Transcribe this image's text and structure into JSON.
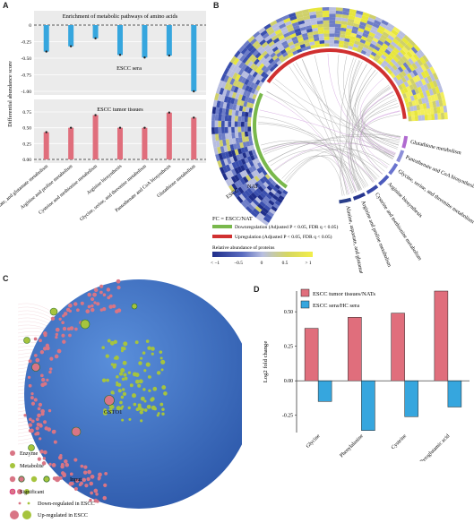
{
  "panels": {
    "a": "A",
    "b": "B",
    "c": "C",
    "d": "D"
  },
  "colors": {
    "blue": "#36a6de",
    "pink": "#e06e7c",
    "green": "#79b84c",
    "red": "#d03030",
    "sphere": "#3a6fc0",
    "enzyme": "#d97585",
    "metabolite": "#a6c43d"
  },
  "chart_data": [
    {
      "type": "bar",
      "panel": "A-top",
      "title": "Enrichment of metabolic pathways of amino acids",
      "subtitle": "ESCC sera",
      "ylabel": "Differential abundance score",
      "ylim": [
        -1.0,
        0
      ],
      "yticks": [
        "0",
        "-0.25",
        "-0.50",
        "-0.75",
        "-1.00"
      ],
      "categories": [
        "Alanine, aspartate, and glutamate metabolism",
        "Arginine and proline metabolism",
        "Cysteine and methionine metabolism",
        "Arginine biosynthesis",
        "Glycine, serine, and threonine metabolism",
        "Pantothenate and CoA biosynthesis",
        "Glutathione metabolism"
      ],
      "values": [
        -0.4,
        -0.32,
        -0.2,
        -0.45,
        -0.49,
        -0.46,
        -1.0
      ]
    },
    {
      "type": "bar",
      "panel": "A-bottom",
      "subtitle": "ESCC tumor tissues",
      "ylim": [
        0,
        0.75
      ],
      "yticks": [
        "0.75",
        "0.50",
        "0.25",
        "0.00"
      ],
      "categories": [
        "Alanine, aspartate, and glutamate metabolism",
        "Arginine and proline metabolism",
        "Cysteine and methionine metabolism",
        "Arginine biosynthesis",
        "Glycine, serine, and threonine metabolism",
        "Pantothenate and CoA biosynthesis",
        "Glutathione metabolism"
      ],
      "values": [
        0.43,
        0.5,
        0.7,
        0.5,
        0.5,
        0.74,
        0.66
      ]
    },
    {
      "type": "bar",
      "panel": "D",
      "ylabel": "Log2 fold change",
      "ylim": [
        -0.375,
        0.65
      ],
      "yticks": [
        "0.50",
        "0.25",
        "0.00",
        "-0.25"
      ],
      "categories": [
        "Glycine",
        "Phenylalanine",
        "Cysteine",
        "Pyroglutamic acid"
      ],
      "series": [
        {
          "name": "ESCC tumor tissues/NATs",
          "values": [
            0.38,
            0.46,
            0.49,
            0.65
          ]
        },
        {
          "name": "ESCC sera/HC sera",
          "values": [
            -0.15,
            -0.36,
            -0.26,
            -0.19
          ]
        }
      ]
    }
  ],
  "panel_b": {
    "groups": [
      "ESCC",
      "NAT"
    ],
    "pathways": [
      "Glutathione metabolism",
      "Pantothenate and CoA biosynthesis",
      "Glycine, serine, and threonine metabolism",
      "Arginine biosynthesis",
      "Cysteine and methionine metabolism",
      "Arginine and proline metabolism",
      "Alanine, aspartate, and glutamate metabolism"
    ],
    "fc_title": "FC = ESCC/NAT",
    "down_label": "Downregulation (Adjusted P < 0.05, FDR q < 0.05)",
    "up_label": "Upregulation (Adjusted P < 0.05, FDR q < 0.05)",
    "abundance_title": "Relative abundance of proteins",
    "abundance_ticks": [
      "< −1",
      "−0.5",
      "0",
      "0.5",
      "> 1"
    ]
  },
  "panel_c": {
    "node_label": "GSTO1",
    "legend": [
      "Enzyme",
      "Metabolite",
      "Input",
      "Significant",
      "Down-regulated in ESCC",
      "Up-regulated in ESCC"
    ]
  }
}
